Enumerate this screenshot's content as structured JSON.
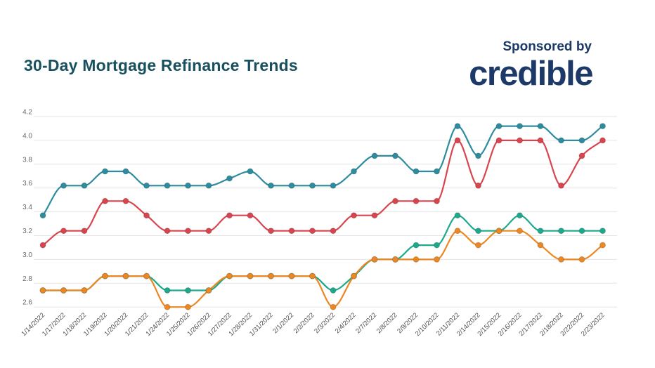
{
  "header": {
    "title": "30-Day Mortgage Refinance Trends",
    "sponsored_by": "Sponsored by",
    "logo": "credible"
  },
  "colors": {
    "title_text": "#18505f",
    "brand_navy": "#1c3968",
    "grid": "#e5e5e5",
    "y_tick_label": "#6b6b6b",
    "x_tick_label": "#4d4d4d"
  },
  "chart_data": {
    "type": "line",
    "title": "30-Day Mortgage Refinance Trends",
    "xlabel": "",
    "ylabel": "",
    "x": [
      "1/14/2022",
      "1/17/2022",
      "1/18/2022",
      "1/19/2022",
      "1/20/2022",
      "1/21/2022",
      "1/24/2022",
      "1/25/2022",
      "1/26/2022",
      "1/27/2022",
      "1/28/2022",
      "1/31/2022",
      "2/1/2022",
      "2/2/2022",
      "2/3/2022",
      "2/4/2022",
      "2/7/2022",
      "2/8/2022",
      "2/9/2022",
      "2/10/2022",
      "2/11/2022",
      "2/14/2022",
      "2/15/2022",
      "2/16/2022",
      "2/17/2022",
      "2/18/2022",
      "2/22/2022",
      "2/23/2022"
    ],
    "series": [
      {
        "name": "teal",
        "color": "#2d8c9e",
        "values": [
          3.37,
          3.62,
          3.62,
          3.74,
          3.74,
          3.62,
          3.62,
          3.62,
          3.62,
          3.68,
          3.74,
          3.62,
          3.62,
          3.62,
          3.62,
          3.74,
          3.87,
          3.87,
          3.74,
          3.74,
          4.12,
          3.87,
          4.12,
          4.12,
          4.12,
          4.0,
          4.0,
          4.12
        ]
      },
      {
        "name": "red",
        "color": "#d9454e",
        "values": [
          3.12,
          3.24,
          3.24,
          3.49,
          3.49,
          3.37,
          3.24,
          3.24,
          3.24,
          3.37,
          3.37,
          3.24,
          3.24,
          3.24,
          3.24,
          3.37,
          3.37,
          3.49,
          3.49,
          3.49,
          4.0,
          3.62,
          4.0,
          4.0,
          4.0,
          3.62,
          3.87,
          4.0
        ]
      },
      {
        "name": "green",
        "color": "#1ca98c",
        "values": [
          2.74,
          2.74,
          2.74,
          2.86,
          2.86,
          2.86,
          2.74,
          2.74,
          2.74,
          2.86,
          2.86,
          2.86,
          2.86,
          2.86,
          2.74,
          2.86,
          3.0,
          3.0,
          3.12,
          3.12,
          3.37,
          3.24,
          3.24,
          3.37,
          3.24,
          3.24,
          3.24,
          3.24
        ]
      },
      {
        "name": "orange",
        "color": "#ec8722",
        "values": [
          2.74,
          2.74,
          2.74,
          2.86,
          2.86,
          2.86,
          2.6,
          2.6,
          2.74,
          2.86,
          2.86,
          2.86,
          2.86,
          2.86,
          2.6,
          2.86,
          3.0,
          3.0,
          3.0,
          3.0,
          3.24,
          3.12,
          3.24,
          3.24,
          3.12,
          3.0,
          3.0,
          3.12
        ]
      }
    ],
    "yticks": [
      4.2,
      4.0,
      3.8,
      3.6,
      3.4,
      3.2,
      3.0,
      2.8,
      2.6
    ],
    "ylim": [
      2.5,
      4.3
    ],
    "grid": true,
    "legend": "none",
    "smooth": true,
    "point_markers": true,
    "x_label_rotation": -45
  }
}
